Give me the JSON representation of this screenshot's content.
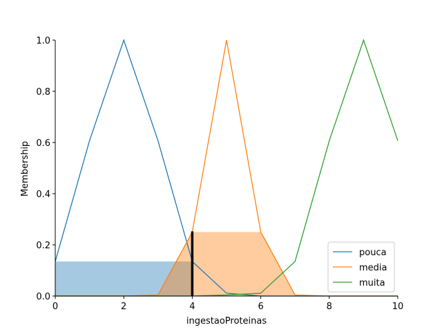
{
  "chart_data": {
    "type": "line",
    "title": "",
    "xlabel": "ingestaoProteinas",
    "ylabel": "Membership",
    "xlim": [
      0,
      10
    ],
    "ylim": [
      0,
      1.0
    ],
    "x_ticks": [
      0,
      2,
      4,
      6,
      8,
      10
    ],
    "y_ticks": [
      0.0,
      0.2,
      0.4,
      0.6,
      0.8,
      1.0
    ],
    "x_tick_labels": [
      "0",
      "2",
      "4",
      "6",
      "8",
      "10"
    ],
    "y_tick_labels": [
      "0.0",
      "0.2",
      "0.4",
      "0.6",
      "0.8",
      "1.0"
    ],
    "x": [
      0,
      1,
      2,
      3,
      4,
      5,
      6,
      7,
      8,
      9,
      10
    ],
    "series": [
      {
        "name": "pouca",
        "color": "#1f77b4",
        "values": [
          0.135,
          0.607,
          1.0,
          0.607,
          0.135,
          0.011,
          0.0,
          0.0,
          0.0,
          0.0,
          0.0
        ]
      },
      {
        "name": "media",
        "color": "#ff7f0e",
        "values": [
          0.0,
          0.0,
          0.0,
          0.004,
          0.25,
          1.0,
          0.25,
          0.004,
          0.0,
          0.0,
          0.0
        ]
      },
      {
        "name": "muita",
        "color": "#2ca02c",
        "values": [
          0.0,
          0.0,
          0.0,
          0.0,
          0.0,
          0.004,
          0.011,
          0.135,
          0.607,
          1.0,
          0.607
        ]
      }
    ],
    "fills": [
      {
        "series": "pouca",
        "color": "#1f77b4",
        "alpha": 0.4,
        "level": 0.135,
        "x": [
          0,
          4
        ]
      },
      {
        "series": "media",
        "color": "#ff7f0e",
        "alpha": 0.4,
        "clip": 0.25,
        "x": [
          3,
          7
        ]
      }
    ],
    "marker": {
      "x": 4,
      "y": 0.25,
      "color": "#000000"
    },
    "legend": {
      "placement": "lower-right",
      "entries": [
        "pouca",
        "media",
        "muita"
      ]
    },
    "grid": false
  }
}
